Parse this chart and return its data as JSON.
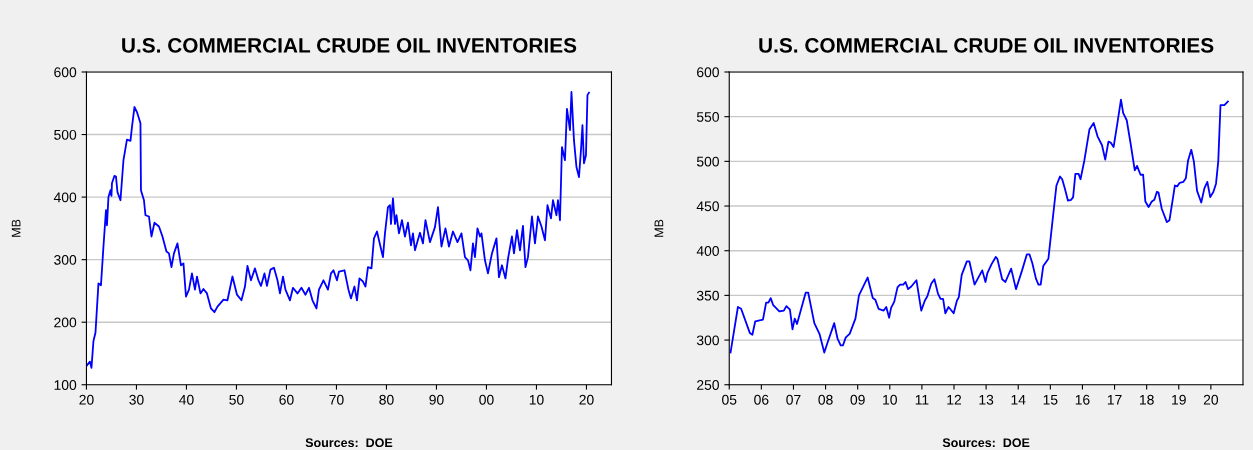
{
  "chart_data": [
    {
      "type": "line",
      "title": "U.S. COMMERCIAL CRUDE OIL INVENTORIES",
      "ylabel": "MB",
      "annotations": [
        "Sources:  DOE"
      ],
      "grid": "y",
      "legend": false,
      "xlim": [
        1920,
        2025
      ],
      "xticks": [
        {
          "value": 1920,
          "label": "20"
        },
        {
          "value": 1930,
          "label": "30"
        },
        {
          "value": 1940,
          "label": "40"
        },
        {
          "value": 1950,
          "label": "50"
        },
        {
          "value": 1960,
          "label": "60"
        },
        {
          "value": 1970,
          "label": "70"
        },
        {
          "value": 1980,
          "label": "80"
        },
        {
          "value": 1990,
          "label": "90"
        },
        {
          "value": 2000,
          "label": "00"
        },
        {
          "value": 2010,
          "label": "10"
        },
        {
          "value": 2020,
          "label": "20"
        }
      ],
      "ylim": [
        100,
        600
      ],
      "yticks": [
        100,
        200,
        300,
        400,
        500,
        600
      ],
      "series": [
        {
          "color": "#0000ff",
          "x": [
            1920.0,
            1920.7,
            1921,
            1921.4,
            1921.8,
            1922.4,
            1922.9,
            1923.4,
            1923.9,
            1924.1,
            1924.4,
            1924.8,
            1925,
            1925.1,
            1925.6,
            1925.9,
            1926.2,
            1926.8,
            1927.4,
            1928.1,
            1928.8,
            1929.1,
            1929.6,
            1930.1,
            1930.8,
            1930.9,
            1931.5,
            1931.8,
            1932.5,
            1933,
            1933.6,
            1934.5,
            1935.2,
            1936,
            1936.5,
            1937,
            1937.5,
            1938.2,
            1938.9,
            1939.4,
            1939.9,
            1940.5,
            1941.1,
            1941.7,
            1942.1,
            1942.8,
            1943.4,
            1944.1,
            1944.9,
            1945.6,
            1946.2,
            1947.4,
            1948.2,
            1949.2,
            1950.1,
            1951,
            1951.7,
            1952.2,
            1952.9,
            1953.7,
            1954.4,
            1954.9,
            1955.6,
            1956.1,
            1956.8,
            1957.5,
            1958.2,
            1958.7,
            1959.3,
            1959.8,
            1960.7,
            1961.3,
            1962.2,
            1963,
            1963.8,
            1964.5,
            1965.2,
            1966,
            1966.5,
            1967.4,
            1968.3,
            1968.9,
            1969.4,
            1970.1,
            1970.5,
            1971.6,
            1972.4,
            1972.9,
            1973.6,
            1974.1,
            1974.6,
            1975.3,
            1975.8,
            1976.3,
            1977,
            1977.5,
            1978.1,
            1978.8,
            1979.3,
            1979.7,
            1980.3,
            1980.7,
            1980.9,
            1981.3,
            1981.7,
            1982,
            1982.5,
            1983.1,
            1983.7,
            1984.3,
            1984.9,
            1985.3,
            1985.7,
            1986.7,
            1987.3,
            1987.8,
            1988.7,
            1989.7,
            1990.3,
            1991,
            1991.8,
            1992.5,
            1993.3,
            1994.2,
            1995,
            1995.7,
            1996.3,
            1996.8,
            1997.3,
            1997.7,
            1998.2,
            1998.7,
            1999,
            1999.7,
            2000.3,
            2001.1,
            2002,
            2002.5,
            2003.1,
            2003.8,
            2004.3,
            2005.1,
            2005.5,
            2006.1,
            2006.7,
            2007.3,
            2007.8,
            2008.3,
            2009.1,
            2009.7,
            2010.3,
            2011,
            2011.7,
            2012.2,
            2012.9,
            2013.3,
            2014,
            2014.3,
            2014.7,
            2015.1,
            2015.7,
            2016.1,
            2016.7,
            2017,
            2017.5,
            2018,
            2018.5,
            2018.9,
            2019.2,
            2019.5,
            2019.9,
            2020.2,
            2020.5
          ],
          "values": [
            130,
            137,
            127,
            170,
            183,
            262,
            259,
            321,
            379,
            355,
            400,
            411,
            402,
            422,
            434,
            433,
            408,
            395,
            459,
            492,
            490,
            512,
            544,
            536,
            518,
            411,
            395,
            371,
            369,
            337,
            359,
            353,
            337,
            313,
            310,
            288,
            310,
            326,
            291,
            294,
            241,
            252,
            278,
            252,
            273,
            246,
            253,
            246,
            222,
            216,
            225,
            236,
            235,
            273,
            244,
            235,
            257,
            290,
            267,
            286,
            267,
            258,
            278,
            258,
            284,
            287,
            267,
            246,
            273,
            252,
            235,
            255,
            246,
            255,
            244,
            255,
            235,
            222,
            252,
            267,
            252,
            278,
            283,
            267,
            281,
            283,
            252,
            238,
            257,
            235,
            270,
            265,
            257,
            288,
            286,
            334,
            345,
            321,
            304,
            342,
            384,
            387,
            357,
            398,
            357,
            371,
            342,
            363,
            337,
            359,
            323,
            342,
            315,
            343,
            326,
            363,
            328,
            352,
            384,
            321,
            350,
            321,
            345,
            328,
            342,
            304,
            299,
            283,
            326,
            304,
            350,
            337,
            342,
            299,
            278,
            310,
            334,
            272,
            291,
            270,
            301,
            337,
            310,
            347,
            315,
            354,
            288,
            304,
            369,
            326,
            369,
            353,
            331,
            387,
            366,
            395,
            371,
            395,
            363,
            480,
            459,
            541,
            507,
            568,
            491,
            448,
            432,
            475,
            515,
            454,
            467,
            563,
            567
          ]
        }
      ]
    },
    {
      "type": "line",
      "title": "U.S. COMMERCIAL CRUDE OIL INVENTORIES",
      "ylabel": "MB",
      "annotations": [
        "Sources:  DOE"
      ],
      "grid": "y",
      "legend": false,
      "xlim": [
        2005,
        2021
      ],
      "xticks": [
        {
          "value": 2005,
          "label": "05"
        },
        {
          "value": 2006,
          "label": "06"
        },
        {
          "value": 2007,
          "label": "07"
        },
        {
          "value": 2008,
          "label": "08"
        },
        {
          "value": 2009,
          "label": "09"
        },
        {
          "value": 2010,
          "label": "10"
        },
        {
          "value": 2011,
          "label": "11"
        },
        {
          "value": 2012,
          "label": "12"
        },
        {
          "value": 2013,
          "label": "13"
        },
        {
          "value": 2014,
          "label": "14"
        },
        {
          "value": 2015,
          "label": "15"
        },
        {
          "value": 2016,
          "label": "16"
        },
        {
          "value": 2017,
          "label": "17"
        },
        {
          "value": 2018,
          "label": "18"
        },
        {
          "value": 2019,
          "label": "19"
        },
        {
          "value": 2020,
          "label": "20"
        }
      ],
      "ylim": [
        250,
        600
      ],
      "yticks": [
        250,
        300,
        350,
        400,
        450,
        500,
        550,
        600
      ],
      "series": [
        {
          "color": "#0000ff",
          "x": [
            2005.04,
            2005.27,
            2005.37,
            2005.64,
            2005.72,
            2005.81,
            2006.05,
            2006.15,
            2006.22,
            2006.29,
            2006.37,
            2006.56,
            2006.7,
            2006.78,
            2006.89,
            2006.97,
            2007.04,
            2007.11,
            2007.38,
            2007.46,
            2007.65,
            2007.81,
            2007.96,
            2008.06,
            2008.27,
            2008.37,
            2008.47,
            2008.54,
            2008.63,
            2008.75,
            2008.93,
            2009.04,
            2009.27,
            2009.31,
            2009.47,
            2009.55,
            2009.65,
            2009.81,
            2009.89,
            2009.98,
            2010.04,
            2010.14,
            2010.24,
            2010.32,
            2010.42,
            2010.49,
            2010.57,
            2010.67,
            2010.83,
            2010.98,
            2011.09,
            2011.17,
            2011.29,
            2011.39,
            2011.5,
            2011.58,
            2011.66,
            2011.73,
            2011.83,
            2011.99,
            2012.09,
            2012.15,
            2012.24,
            2012.4,
            2012.48,
            2012.64,
            2012.88,
            2012.98,
            2013.04,
            2013.17,
            2013.3,
            2013.35,
            2013.5,
            2013.6,
            2013.78,
            2013.93,
            2014.12,
            2014.27,
            2014.35,
            2014.44,
            2014.55,
            2014.63,
            2014.7,
            2014.78,
            2014.94,
            2015.07,
            2015.19,
            2015.3,
            2015.37,
            2015.45,
            2015.55,
            2015.65,
            2015.71,
            2015.78,
            2015.88,
            2015.94,
            2016.06,
            2016.22,
            2016.35,
            2016.47,
            2016.61,
            2016.71,
            2016.81,
            2016.88,
            2016.97,
            2017.09,
            2017.2,
            2017.27,
            2017.38,
            2017.5,
            2017.63,
            2017.7,
            2017.81,
            2017.89,
            2017.96,
            2018.06,
            2018.16,
            2018.24,
            2018.32,
            2018.37,
            2018.47,
            2018.63,
            2018.71,
            2018.81,
            2018.88,
            2018.95,
            2019.03,
            2019.14,
            2019.22,
            2019.29,
            2019.39,
            2019.47,
            2019.57,
            2019.7,
            2019.8,
            2019.89,
            2019.98,
            2020.08,
            2020.16,
            2020.23,
            2020.3,
            2020.42,
            2020.53
          ],
          "values": [
            286,
            337,
            335,
            308,
            306,
            321,
            323,
            342,
            342,
            347,
            339,
            332,
            333,
            338,
            334,
            312,
            324,
            318,
            353,
            353,
            319,
            307,
            286,
            297,
            319,
            302,
            294,
            294,
            303,
            307,
            324,
            350,
            367,
            370,
            347,
            345,
            335,
            333,
            337,
            325,
            336,
            343,
            359,
            362,
            362,
            365,
            357,
            360,
            367,
            333,
            344,
            349,
            363,
            368,
            352,
            346,
            346,
            330,
            337,
            330,
            344,
            348,
            373,
            388,
            388,
            362,
            378,
            365,
            375,
            385,
            393,
            391,
            368,
            365,
            380,
            357,
            378,
            396,
            396,
            386,
            369,
            362,
            362,
            383,
            391,
            434,
            473,
            483,
            480,
            470,
            456,
            457,
            460,
            486,
            486,
            480,
            501,
            536,
            543,
            528,
            518,
            502,
            522,
            521,
            516,
            543,
            569,
            554,
            546,
            520,
            490,
            495,
            485,
            485,
            455,
            449,
            455,
            457,
            466,
            465,
            447,
            432,
            434,
            457,
            473,
            472,
            476,
            477,
            481,
            501,
            513,
            500,
            467,
            454,
            470,
            477,
            460,
            466,
            475,
            500,
            563,
            563,
            567
          ]
        }
      ]
    }
  ]
}
